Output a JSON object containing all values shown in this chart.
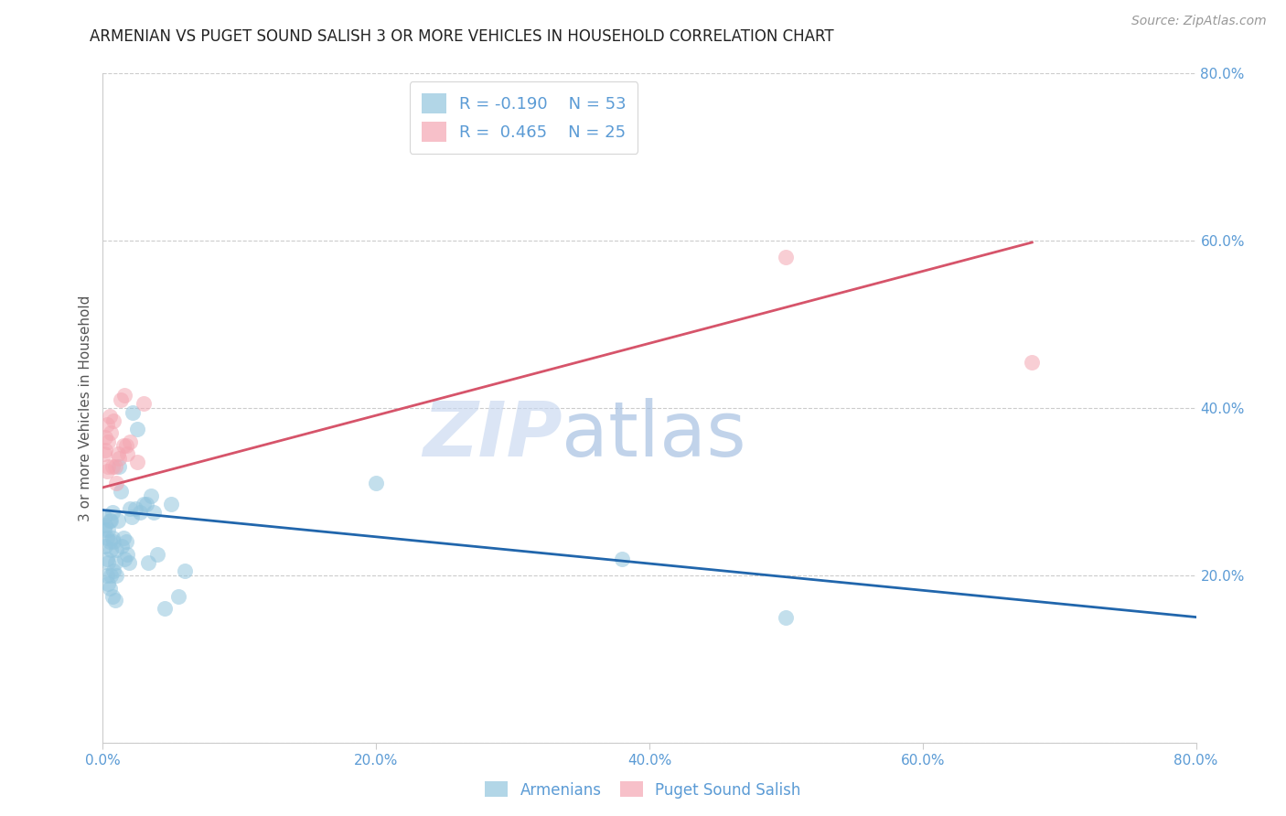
{
  "title": "ARMENIAN VS PUGET SOUND SALISH 3 OR MORE VEHICLES IN HOUSEHOLD CORRELATION CHART",
  "source": "Source: ZipAtlas.com",
  "ylabel": "3 or more Vehicles in Household",
  "xlim": [
    0,
    0.8
  ],
  "ylim": [
    0,
    0.8
  ],
  "xticks": [
    0.0,
    0.2,
    0.4,
    0.6,
    0.8
  ],
  "yticks_right": [
    0.0,
    0.2,
    0.4,
    0.6,
    0.8
  ],
  "ytick_right_labels": [
    "",
    "20.0%",
    "40.0%",
    "60.0%",
    "80.0%"
  ],
  "xtick_labels": [
    "0.0%",
    "20.0%",
    "40.0%",
    "60.0%",
    "80.0%"
  ],
  "legend_r_armenians": "-0.190",
  "legend_n_armenians": "53",
  "legend_r_puget": "0.465",
  "legend_n_puget": "25",
  "color_armenians": "#92c5de",
  "color_puget": "#f4a6b2",
  "color_armenians_line": "#2166ac",
  "color_puget_line": "#d6546a",
  "color_tick_labels": "#5b9bd5",
  "watermark_text": "ZIP",
  "watermark_text2": "atlas",
  "armenians_x": [
    0.001,
    0.001,
    0.002,
    0.002,
    0.003,
    0.003,
    0.003,
    0.004,
    0.004,
    0.004,
    0.005,
    0.005,
    0.005,
    0.006,
    0.006,
    0.006,
    0.007,
    0.007,
    0.007,
    0.008,
    0.008,
    0.009,
    0.009,
    0.01,
    0.01,
    0.011,
    0.012,
    0.013,
    0.014,
    0.015,
    0.016,
    0.017,
    0.018,
    0.019,
    0.02,
    0.021,
    0.022,
    0.024,
    0.025,
    0.027,
    0.03,
    0.032,
    0.033,
    0.035,
    0.037,
    0.04,
    0.045,
    0.05,
    0.055,
    0.06,
    0.2,
    0.38,
    0.5
  ],
  "armenians_y": [
    0.27,
    0.255,
    0.26,
    0.235,
    0.245,
    0.22,
    0.2,
    0.255,
    0.215,
    0.19,
    0.265,
    0.24,
    0.185,
    0.265,
    0.23,
    0.2,
    0.275,
    0.245,
    0.175,
    0.24,
    0.205,
    0.215,
    0.17,
    0.23,
    0.2,
    0.265,
    0.33,
    0.3,
    0.235,
    0.245,
    0.22,
    0.24,
    0.225,
    0.215,
    0.28,
    0.27,
    0.395,
    0.28,
    0.375,
    0.275,
    0.285,
    0.285,
    0.215,
    0.295,
    0.275,
    0.225,
    0.16,
    0.285,
    0.175,
    0.205,
    0.31,
    0.22,
    0.15
  ],
  "puget_x": [
    0.001,
    0.002,
    0.002,
    0.003,
    0.003,
    0.004,
    0.004,
    0.005,
    0.006,
    0.007,
    0.008,
    0.009,
    0.01,
    0.011,
    0.012,
    0.013,
    0.015,
    0.016,
    0.017,
    0.018,
    0.02,
    0.025,
    0.03,
    0.5,
    0.68
  ],
  "puget_y": [
    0.345,
    0.365,
    0.35,
    0.38,
    0.325,
    0.36,
    0.33,
    0.39,
    0.37,
    0.33,
    0.385,
    0.33,
    0.31,
    0.345,
    0.34,
    0.41,
    0.355,
    0.415,
    0.355,
    0.345,
    0.36,
    0.335,
    0.405,
    0.58,
    0.455
  ],
  "blue_line_x": [
    0.0,
    0.8
  ],
  "blue_line_y": [
    0.278,
    0.15
  ],
  "pink_line_x": [
    0.0,
    0.68
  ],
  "pink_line_y": [
    0.305,
    0.598
  ]
}
